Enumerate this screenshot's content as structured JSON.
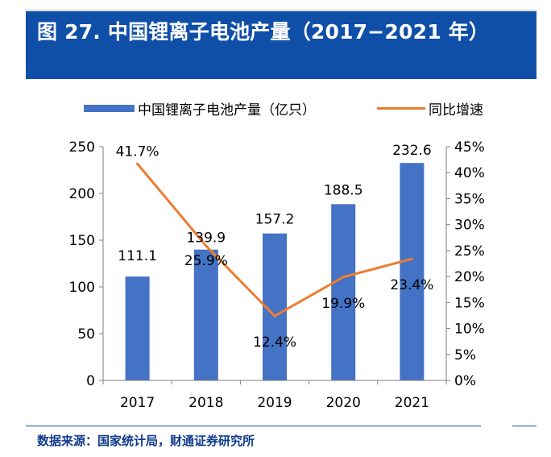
{
  "title": "图 27. 中国锂离子电池产量（2017−2021 年）",
  "source": "数据来源：国家统计局，财通证券研究所",
  "colors": {
    "title_bg": "#0f4fa8",
    "bar": "#4472c4",
    "line": "#ed7d31",
    "source_text": "#0f3a8a"
  },
  "legend": {
    "bar_label": "中国锂离子电池产量（亿只）",
    "line_label": "同比增速"
  },
  "chart_data": {
    "type": "bar",
    "categories": [
      "2017",
      "2018",
      "2019",
      "2020",
      "2021"
    ],
    "series": [
      {
        "name": "中国锂离子电池产量（亿只）",
        "type": "bar",
        "axis": "left",
        "values": [
          111.1,
          139.9,
          157.2,
          188.5,
          232.6
        ],
        "labels": [
          "111.1",
          "139.9",
          "157.2",
          "188.5",
          "232.6"
        ]
      },
      {
        "name": "同比增速",
        "type": "line",
        "axis": "right",
        "values": [
          41.7,
          25.9,
          12.4,
          19.9,
          23.4
        ],
        "labels": [
          "41.7%",
          "25.9%",
          "12.4%",
          "19.9%",
          "23.4%"
        ]
      }
    ],
    "left_axis": {
      "ylim": [
        0,
        250
      ],
      "ticks": [
        "0",
        "50",
        "100",
        "150",
        "200",
        "250"
      ]
    },
    "right_axis": {
      "ylim": [
        0,
        45
      ],
      "ticks": [
        "0%",
        "5%",
        "10%",
        "15%",
        "20%",
        "25%",
        "30%",
        "35%",
        "40%",
        "45%"
      ]
    },
    "grid": false,
    "legend_position": "top"
  }
}
